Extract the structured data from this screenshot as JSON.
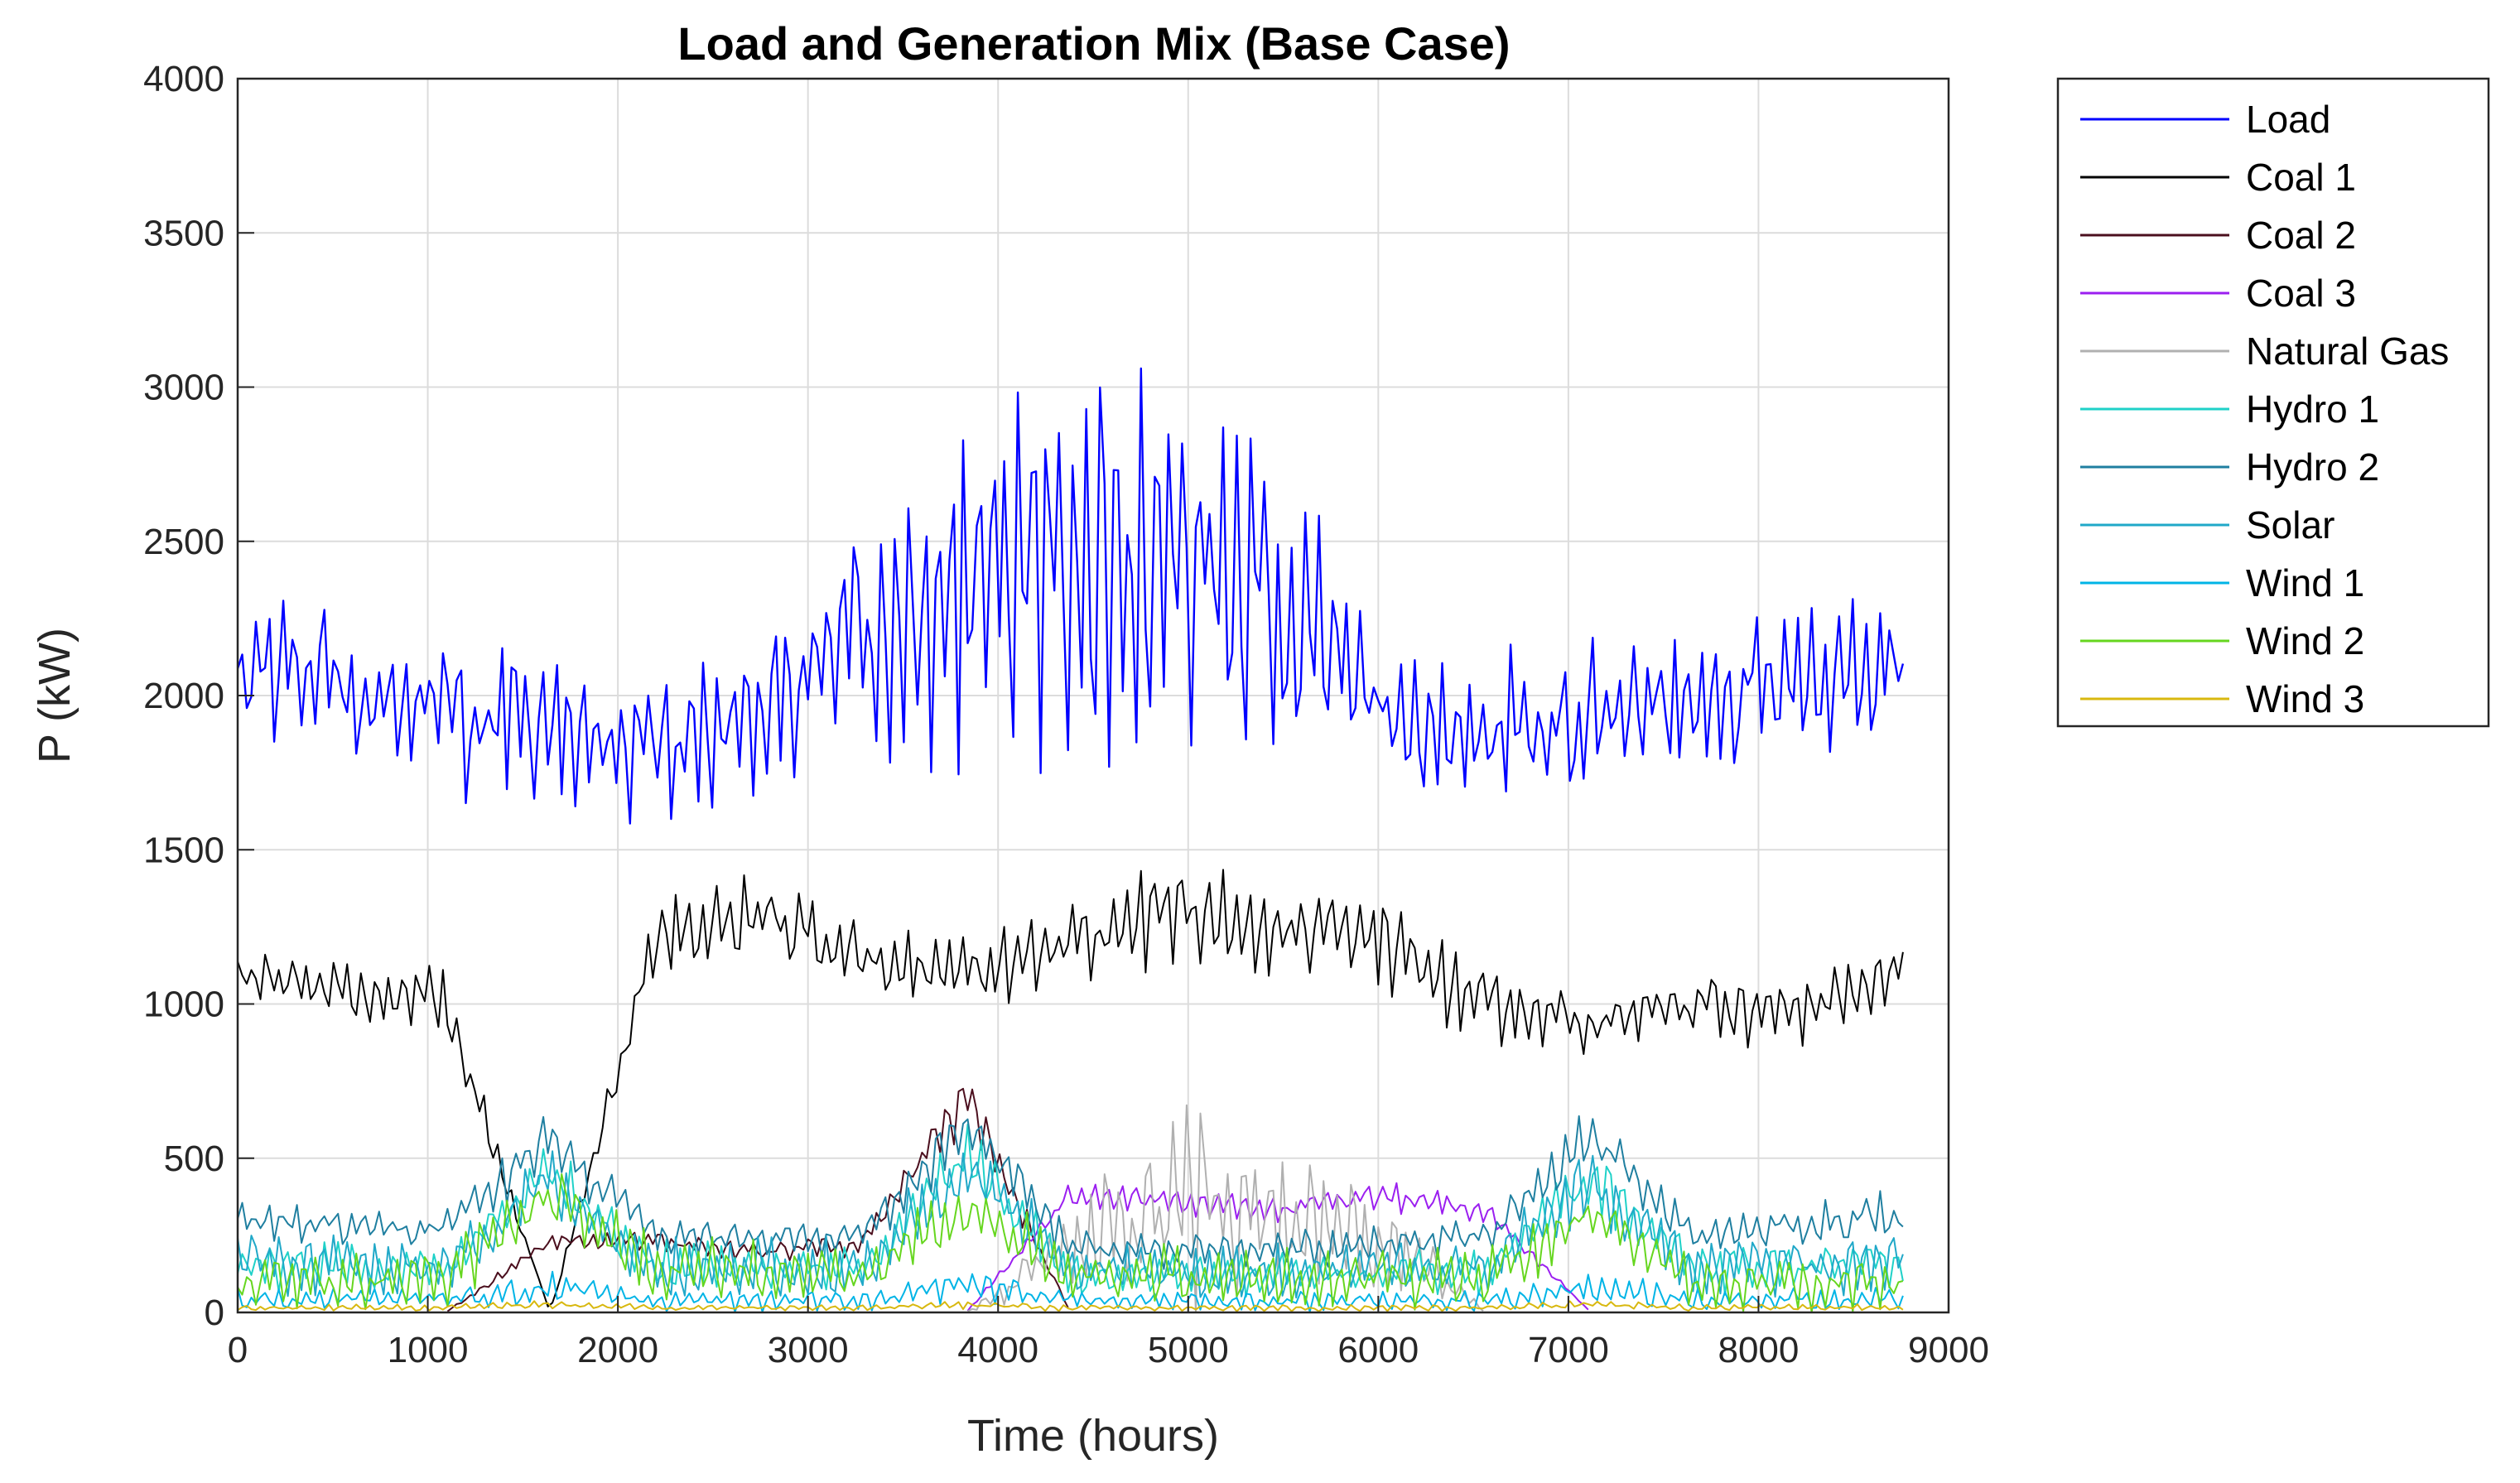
{
  "chart_data": {
    "type": "line",
    "title": "Load and Generation Mix (Base Case)",
    "xlabel": "Time (hours)",
    "ylabel": "P (kW)",
    "xlim": [
      0,
      9000
    ],
    "ylim": [
      0,
      4000
    ],
    "xticks": [
      0,
      1000,
      2000,
      3000,
      4000,
      5000,
      6000,
      7000,
      8000,
      9000
    ],
    "yticks": [
      0,
      500,
      1000,
      1500,
      2000,
      2500,
      3000,
      3500,
      4000
    ],
    "grid": true,
    "legend_location": "outside-top-right",
    "sample_step_hours": 24,
    "series": [
      {
        "name": "Load",
        "color": "#0000ff",
        "mid": [
          2100,
          2050,
          1950,
          1880,
          1850,
          1950,
          2150,
          2350,
          2450,
          2400,
          2300,
          1950,
          1850,
          1950,
          2000,
          2050,
          2100
        ],
        "amp": [
          250,
          280,
          320,
          300,
          280,
          300,
          450,
          650,
          750,
          700,
          600,
          330,
          300,
          280,
          280,
          300,
          300
        ]
      },
      {
        "name": " Coal 1",
        "color": "#000000",
        "mid": [
          1100,
          1050,
          1000,
          0,
          1200,
          1300,
          1150,
          1100,
          1200,
          1300,
          1250,
          1200,
          1000,
          950,
          1000,
          950,
          1100
        ],
        "amp": [
          80,
          120,
          120,
          0,
          150,
          150,
          120,
          150,
          170,
          200,
          170,
          180,
          140,
          120,
          120,
          130,
          150
        ]
      },
      {
        "name": "Coal 2",
        "color": "#4b0f1e",
        "mid": [
          0,
          0,
          0,
          230,
          230,
          200,
          220,
          700,
          0,
          0,
          0,
          0,
          0,
          0,
          0,
          0,
          0
        ],
        "amp": [
          0,
          0,
          0,
          40,
          40,
          40,
          40,
          120,
          0,
          0,
          0,
          0,
          0,
          0,
          0,
          0,
          0
        ]
      },
      {
        "name": "Coal 3",
        "color": "#9b1ff0",
        "mid": [
          0,
          0,
          0,
          0,
          0,
          0,
          0,
          0,
          380,
          360,
          330,
          380,
          330,
          0,
          0,
          0,
          0
        ],
        "amp": [
          0,
          0,
          0,
          0,
          0,
          0,
          0,
          0,
          50,
          50,
          50,
          60,
          40,
          0,
          0,
          0,
          0
        ]
      },
      {
        "name": "Natural Gas",
        "color": "#b0b0b0",
        "mid": [
          0,
          0,
          0,
          0,
          0,
          0,
          0,
          0,
          200,
          350,
          300,
          250,
          0,
          0,
          0,
          0,
          0
        ],
        "amp": [
          0,
          0,
          0,
          0,
          0,
          0,
          0,
          0,
          150,
          400,
          300,
          200,
          0,
          0,
          0,
          0,
          0
        ]
      },
      {
        "name": "Hydro 1",
        "color": "#1fd1c8",
        "mid": [
          150,
          150,
          140,
          450,
          150,
          140,
          140,
          500,
          120,
          120,
          120,
          130,
          140,
          450,
          140,
          150,
          160
        ],
        "amp": [
          90,
          90,
          90,
          120,
          90,
          90,
          90,
          120,
          80,
          80,
          80,
          80,
          90,
          120,
          90,
          90,
          90
        ]
      },
      {
        "name": "Hydro 2",
        "color": "#1f7fa0",
        "mid": [
          290,
          280,
          270,
          560,
          250,
          240,
          240,
          600,
          220,
          200,
          200,
          220,
          240,
          560,
          250,
          280,
          310
        ],
        "amp": [
          80,
          70,
          70,
          120,
          60,
          60,
          60,
          120,
          70,
          70,
          70,
          70,
          70,
          120,
          70,
          80,
          100
        ]
      },
      {
        "name": "Solar",
        "color": "#20a8c8",
        "mid": [
          160,
          160,
          150,
          420,
          150,
          140,
          140,
          480,
          130,
          130,
          130,
          140,
          150,
          420,
          150,
          160,
          170
        ],
        "amp": [
          110,
          110,
          110,
          130,
          110,
          110,
          110,
          130,
          100,
          100,
          100,
          100,
          110,
          130,
          110,
          110,
          110
        ]
      },
      {
        "name": "Wind 1",
        "color": "#00b4e6",
        "mid": [
          40,
          40,
          40,
          80,
          40,
          40,
          40,
          90,
          40,
          40,
          40,
          40,
          40,
          80,
          40,
          40,
          40
        ],
        "amp": [
          40,
          40,
          40,
          60,
          40,
          40,
          40,
          60,
          40,
          40,
          40,
          40,
          40,
          60,
          40,
          40,
          40
        ]
      },
      {
        "name": "Wind 2",
        "color": "#66d61f",
        "mid": [
          100,
          110,
          110,
          380,
          140,
          130,
          120,
          350,
          110,
          120,
          110,
          110,
          110,
          330,
          100,
          100,
          100
        ],
        "amp": [
          110,
          120,
          120,
          120,
          120,
          120,
          110,
          130,
          110,
          110,
          110,
          110,
          110,
          120,
          100,
          100,
          100
        ]
      },
      {
        "name": "Wind 3",
        "color": "#d8b80f",
        "mid": [
          15,
          15,
          15,
          25,
          15,
          15,
          15,
          25,
          15,
          15,
          15,
          15,
          15,
          25,
          15,
          15,
          15
        ],
        "amp": [
          12,
          12,
          12,
          15,
          12,
          12,
          12,
          15,
          12,
          12,
          12,
          12,
          12,
          15,
          12,
          12,
          12
        ]
      }
    ]
  }
}
